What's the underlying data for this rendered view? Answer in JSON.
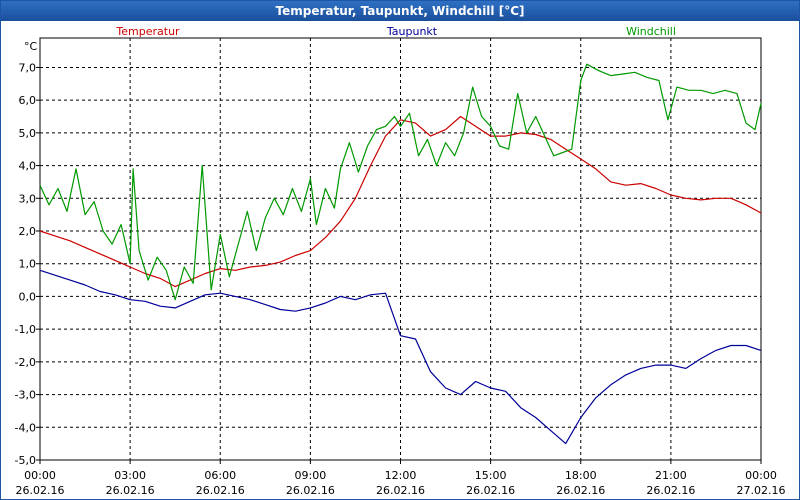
{
  "chart_data": {
    "type": "line",
    "title": "Temperatur, Taupunkt, Windchill [°C]",
    "ylabel": "°C",
    "ylim": [
      -5,
      7.9
    ],
    "yticks": [
      "7,0",
      "6,0",
      "5,0",
      "4,0",
      "3,0",
      "2,0",
      "1,0",
      "0,0",
      "-1,0",
      "-2,0",
      "-3,0",
      "-4,0",
      "-5,0"
    ],
    "xlim": [
      0,
      24
    ],
    "xticks": [
      {
        "time": "00:00",
        "date": "26.02.16"
      },
      {
        "time": "03:00",
        "date": "26.02.16"
      },
      {
        "time": "06:00",
        "date": "26.02.16"
      },
      {
        "time": "09:00",
        "date": "26.02.16"
      },
      {
        "time": "12:00",
        "date": "26.02.16"
      },
      {
        "time": "15:00",
        "date": "26.02.16"
      },
      {
        "time": "18:00",
        "date": "26.02.16"
      },
      {
        "time": "21:00",
        "date": "26.02.16"
      },
      {
        "time": "00:00",
        "date": "27.02.16"
      }
    ],
    "grid": true,
    "series": [
      {
        "name": "Temperatur",
        "color": "#cc0000",
        "points": [
          [
            0,
            2.0
          ],
          [
            0.5,
            1.85
          ],
          [
            1.0,
            1.7
          ],
          [
            1.5,
            1.5
          ],
          [
            2.0,
            1.3
          ],
          [
            2.5,
            1.1
          ],
          [
            3.0,
            0.9
          ],
          [
            3.5,
            0.7
          ],
          [
            4.0,
            0.55
          ],
          [
            4.5,
            0.3
          ],
          [
            5.0,
            0.5
          ],
          [
            5.5,
            0.7
          ],
          [
            6.0,
            0.85
          ],
          [
            6.5,
            0.8
          ],
          [
            7.0,
            0.9
          ],
          [
            7.5,
            0.95
          ],
          [
            8.0,
            1.05
          ],
          [
            8.5,
            1.25
          ],
          [
            9.0,
            1.4
          ],
          [
            9.5,
            1.8
          ],
          [
            10.0,
            2.3
          ],
          [
            10.5,
            3.0
          ],
          [
            11.0,
            4.0
          ],
          [
            11.5,
            4.9
          ],
          [
            12.0,
            5.4
          ],
          [
            12.5,
            5.3
          ],
          [
            13.0,
            4.9
          ],
          [
            13.5,
            5.1
          ],
          [
            14.0,
            5.5
          ],
          [
            14.5,
            5.2
          ],
          [
            15.0,
            4.9
          ],
          [
            15.5,
            4.9
          ],
          [
            16.0,
            5.0
          ],
          [
            16.5,
            4.95
          ],
          [
            17.0,
            4.8
          ],
          [
            17.5,
            4.5
          ],
          [
            18.0,
            4.2
          ],
          [
            18.5,
            3.9
          ],
          [
            19.0,
            3.5
          ],
          [
            19.5,
            3.4
          ],
          [
            20.0,
            3.45
          ],
          [
            20.5,
            3.3
          ],
          [
            21.0,
            3.1
          ],
          [
            21.5,
            3.0
          ],
          [
            22.0,
            2.95
          ],
          [
            22.5,
            3.0
          ],
          [
            23.0,
            3.0
          ],
          [
            23.5,
            2.8
          ],
          [
            24.0,
            2.55
          ]
        ]
      },
      {
        "name": "Taupunkt",
        "color": "#000099",
        "points": [
          [
            0,
            0.8
          ],
          [
            0.5,
            0.65
          ],
          [
            1.0,
            0.5
          ],
          [
            1.5,
            0.35
          ],
          [
            2.0,
            0.15
          ],
          [
            2.5,
            0.05
          ],
          [
            3.0,
            -0.1
          ],
          [
            3.5,
            -0.15
          ],
          [
            4.0,
            -0.3
          ],
          [
            4.5,
            -0.35
          ],
          [
            5.0,
            -0.15
          ],
          [
            5.5,
            0.05
          ],
          [
            6.0,
            0.1
          ],
          [
            6.5,
            0.0
          ],
          [
            7.0,
            -0.1
          ],
          [
            7.5,
            -0.25
          ],
          [
            8.0,
            -0.4
          ],
          [
            8.5,
            -0.45
          ],
          [
            9.0,
            -0.35
          ],
          [
            9.5,
            -0.2
          ],
          [
            10.0,
            0.0
          ],
          [
            10.5,
            -0.1
          ],
          [
            11.0,
            0.05
          ],
          [
            11.5,
            0.1
          ],
          [
            12.0,
            -1.2
          ],
          [
            12.5,
            -1.3
          ],
          [
            13.0,
            -2.3
          ],
          [
            13.5,
            -2.8
          ],
          [
            14.0,
            -3.0
          ],
          [
            14.5,
            -2.6
          ],
          [
            15.0,
            -2.8
          ],
          [
            15.5,
            -2.9
          ],
          [
            16.0,
            -3.4
          ],
          [
            16.5,
            -3.7
          ],
          [
            17.0,
            -4.1
          ],
          [
            17.5,
            -4.5
          ],
          [
            18.0,
            -3.7
          ],
          [
            18.5,
            -3.1
          ],
          [
            19.0,
            -2.7
          ],
          [
            19.5,
            -2.4
          ],
          [
            20.0,
            -2.2
          ],
          [
            20.5,
            -2.1
          ],
          [
            21.0,
            -2.1
          ],
          [
            21.5,
            -2.2
          ],
          [
            22.0,
            -1.9
          ],
          [
            22.5,
            -1.65
          ],
          [
            23.0,
            -1.5
          ],
          [
            23.5,
            -1.5
          ],
          [
            24.0,
            -1.65
          ]
        ]
      },
      {
        "name": "Windchill",
        "color": "#009900",
        "points": [
          [
            0,
            3.4
          ],
          [
            0.3,
            2.8
          ],
          [
            0.6,
            3.3
          ],
          [
            0.9,
            2.6
          ],
          [
            1.2,
            3.9
          ],
          [
            1.5,
            2.5
          ],
          [
            1.8,
            2.9
          ],
          [
            2.1,
            2.0
          ],
          [
            2.4,
            1.6
          ],
          [
            2.7,
            2.2
          ],
          [
            3.0,
            1.0
          ],
          [
            3.1,
            3.9
          ],
          [
            3.3,
            1.4
          ],
          [
            3.6,
            0.5
          ],
          [
            3.9,
            1.2
          ],
          [
            4.2,
            0.8
          ],
          [
            4.5,
            -0.1
          ],
          [
            4.8,
            0.9
          ],
          [
            5.1,
            0.4
          ],
          [
            5.4,
            4.0
          ],
          [
            5.7,
            0.2
          ],
          [
            6.0,
            1.9
          ],
          [
            6.3,
            0.6
          ],
          [
            6.6,
            1.6
          ],
          [
            6.9,
            2.6
          ],
          [
            7.2,
            1.4
          ],
          [
            7.5,
            2.4
          ],
          [
            7.8,
            3.0
          ],
          [
            8.1,
            2.5
          ],
          [
            8.4,
            3.3
          ],
          [
            8.7,
            2.6
          ],
          [
            9.0,
            3.6
          ],
          [
            9.2,
            2.2
          ],
          [
            9.5,
            3.3
          ],
          [
            9.8,
            2.7
          ],
          [
            10.0,
            3.9
          ],
          [
            10.3,
            4.7
          ],
          [
            10.6,
            3.8
          ],
          [
            10.9,
            4.6
          ],
          [
            11.2,
            5.1
          ],
          [
            11.5,
            5.2
          ],
          [
            11.8,
            5.5
          ],
          [
            12.0,
            5.2
          ],
          [
            12.3,
            5.6
          ],
          [
            12.6,
            4.3
          ],
          [
            12.9,
            4.8
          ],
          [
            13.2,
            4.0
          ],
          [
            13.5,
            4.7
          ],
          [
            13.8,
            4.3
          ],
          [
            14.1,
            5.0
          ],
          [
            14.4,
            6.4
          ],
          [
            14.7,
            5.5
          ],
          [
            15.0,
            5.2
          ],
          [
            15.3,
            4.6
          ],
          [
            15.6,
            4.5
          ],
          [
            15.9,
            6.2
          ],
          [
            16.2,
            5.0
          ],
          [
            16.5,
            5.5
          ],
          [
            16.8,
            4.9
          ],
          [
            17.1,
            4.3
          ],
          [
            17.4,
            4.4
          ],
          [
            17.7,
            4.5
          ],
          [
            18.0,
            6.6
          ],
          [
            18.2,
            7.1
          ],
          [
            18.6,
            6.9
          ],
          [
            19.0,
            6.75
          ],
          [
            19.4,
            6.8
          ],
          [
            19.8,
            6.85
          ],
          [
            20.2,
            6.7
          ],
          [
            20.6,
            6.6
          ],
          [
            20.9,
            5.4
          ],
          [
            21.2,
            6.4
          ],
          [
            21.6,
            6.3
          ],
          [
            22.0,
            6.3
          ],
          [
            22.4,
            6.2
          ],
          [
            22.8,
            6.3
          ],
          [
            23.2,
            6.2
          ],
          [
            23.5,
            5.3
          ],
          [
            23.8,
            5.1
          ],
          [
            24.0,
            5.9
          ]
        ]
      }
    ]
  }
}
